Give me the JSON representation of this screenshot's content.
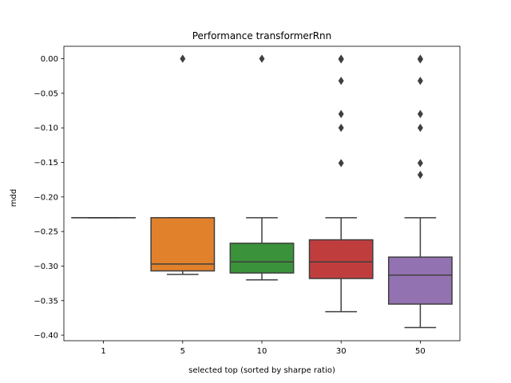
{
  "chart_data": {
    "type": "box",
    "title": "Performance transformerRnn",
    "xlabel": "selected top (sorted by sharpe ratio)",
    "ylabel": "mdd",
    "ylim": [
      -0.408,
      0.018
    ],
    "yticks": [
      0.0,
      -0.05,
      -0.1,
      -0.15,
      -0.2,
      -0.25,
      -0.3,
      -0.35,
      -0.4
    ],
    "ytick_labels": [
      "0.00",
      "−0.05",
      "−0.10",
      "−0.15",
      "−0.20",
      "−0.25",
      "−0.30",
      "−0.35",
      "−0.40"
    ],
    "categories": [
      "1",
      "5",
      "10",
      "30",
      "50"
    ],
    "boxes": [
      {
        "category": "1",
        "color": "#3274a1",
        "whisker_low": -0.23,
        "q1": -0.23,
        "median": -0.23,
        "q3": -0.23,
        "whisker_high": -0.23,
        "outliers": []
      },
      {
        "category": "5",
        "color": "#e1812c",
        "whisker_low": -0.312,
        "q1": -0.307,
        "median": -0.297,
        "q3": -0.23,
        "whisker_high": -0.23,
        "outliers": [
          0.0
        ]
      },
      {
        "category": "10",
        "color": "#3a923a",
        "whisker_low": -0.32,
        "q1": -0.31,
        "median": -0.294,
        "q3": -0.267,
        "whisker_high": -0.23,
        "outliers": [
          0.0
        ]
      },
      {
        "category": "30",
        "color": "#c03d3e",
        "whisker_low": -0.366,
        "q1": -0.318,
        "median": -0.294,
        "q3": -0.262,
        "whisker_high": -0.23,
        "outliers": [
          0.0,
          -0.001,
          -0.032,
          -0.08,
          -0.1,
          -0.151
        ]
      },
      {
        "category": "50",
        "color": "#9372b2",
        "whisker_low": -0.389,
        "q1": -0.355,
        "median": -0.313,
        "q3": -0.287,
        "whisker_high": -0.23,
        "outliers": [
          0.0,
          -0.001,
          -0.032,
          -0.08,
          -0.1,
          -0.151,
          -0.168
        ]
      }
    ],
    "edge_color": "#3f3f3f",
    "grid": false,
    "legend": "none"
  }
}
